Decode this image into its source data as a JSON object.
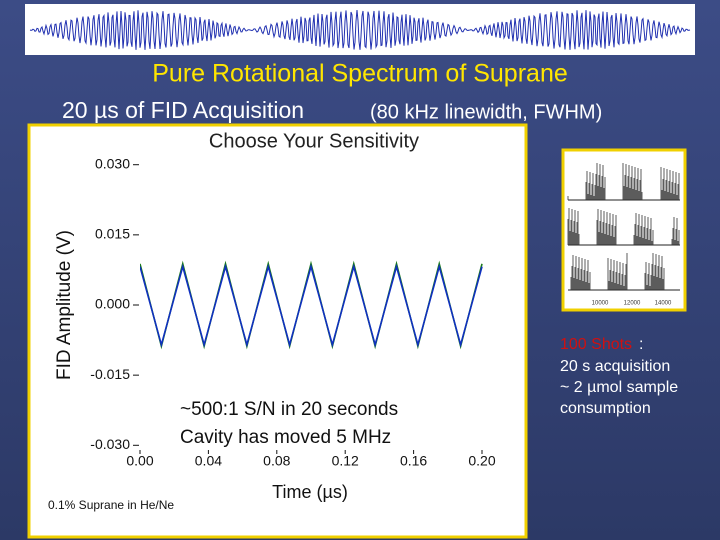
{
  "slide": {
    "title": "Pure Rotational Spectrum of Suprane",
    "subtitle": "20 µs of FID Acquisition",
    "subtitle_note": "(80 kHz linewidth, FWHM)",
    "annotations": [
      "~500:1 S/N in 20 seconds",
      "Cavity has moved 5 MHz"
    ],
    "sample_note": "0.1% Suprane in He/Ne",
    "inset_ticks": [
      "10000",
      "12000",
      "14000"
    ],
    "side_text": {
      "highlight": "100 Shots",
      "colon": ":",
      "lines": [
        "20 s acquisition",
        "~ 2 µmol sample",
        "consumption"
      ]
    }
  },
  "chart_data": {
    "type": "line",
    "title": "Choose Your Sensitivity",
    "xlabel": "Time (µs)",
    "ylabel": "FID Amplitude (V)",
    "xlim": [
      0,
      0.2
    ],
    "ylim": [
      -0.034,
      0.034
    ],
    "xticks": [
      {
        "value": 0,
        "label": "0.00"
      },
      {
        "value": 0.04,
        "label": "0.04"
      },
      {
        "value": 0.08,
        "label": "0.08"
      },
      {
        "value": 0.12,
        "label": "0.12"
      },
      {
        "value": 0.16,
        "label": "0.16"
      },
      {
        "value": 0.2,
        "label": "0.20"
      }
    ],
    "yticks": [
      {
        "value": 0.03,
        "label": "0.030"
      },
      {
        "value": 0.015,
        "label": "0.015"
      },
      {
        "value": 0,
        "label": "0.000"
      },
      {
        "value": -0.015,
        "label": "-0.015"
      },
      {
        "value": -0.03,
        "label": "-0.030"
      }
    ],
    "x": [
      0,
      0.0125,
      0.025,
      0.0375,
      0.05,
      0.0625,
      0.075,
      0.0875,
      0.1,
      0.1125,
      0.125,
      0.1375,
      0.15,
      0.1625,
      0.175,
      0.1875,
      0.2
    ],
    "series": [
      {
        "color": "#1a7a1a",
        "values": [
          0.0088,
          -0.0088,
          0.0088,
          -0.0088,
          0.0088,
          -0.0088,
          0.0088,
          -0.0088,
          0.0088,
          -0.0088,
          0.0088,
          -0.0088,
          0.0088,
          -0.0088,
          0.0088,
          -0.0088,
          0.0088
        ]
      },
      {
        "color": "#1030c0",
        "values": [
          0.0082,
          -0.0085,
          0.0082,
          -0.0085,
          0.0082,
          -0.0085,
          0.0082,
          -0.0085,
          0.0082,
          -0.0085,
          0.0082,
          -0.0085,
          0.0082,
          -0.0085,
          0.0082,
          -0.0085,
          0.0082
        ]
      }
    ]
  }
}
